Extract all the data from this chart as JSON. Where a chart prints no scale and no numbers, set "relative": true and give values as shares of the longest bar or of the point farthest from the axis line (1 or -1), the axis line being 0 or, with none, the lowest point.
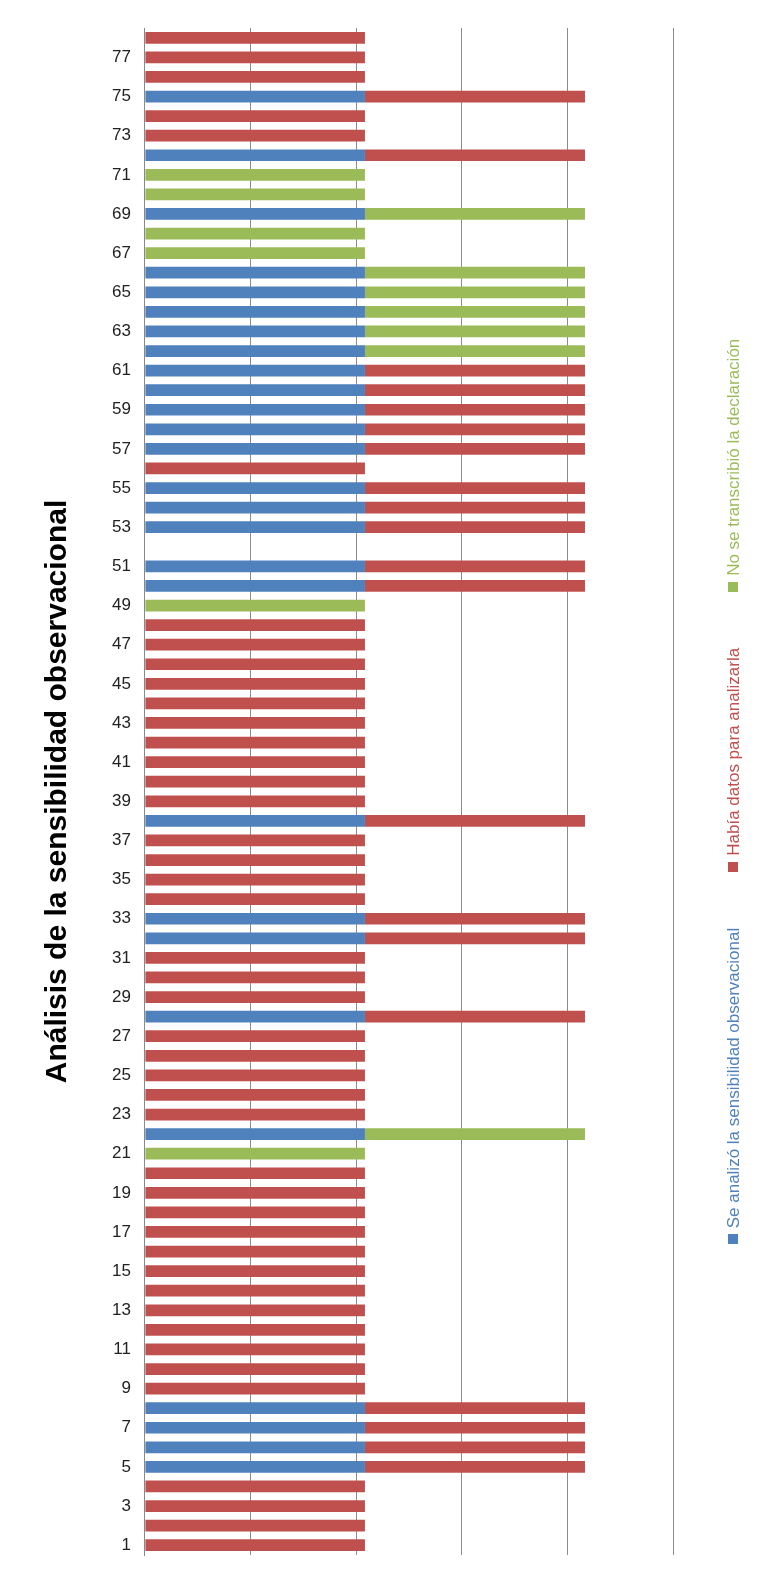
{
  "chart_data": {
    "type": "bar",
    "orientation": "horizontal",
    "title": "Análisis de la sensibilidad observacional",
    "relative": true,
    "stacked": true,
    "grid": "x",
    "legend": "right",
    "categories": [
      null,
      "77",
      null,
      "75",
      null,
      "73",
      null,
      "71",
      null,
      "69",
      null,
      "67",
      null,
      "65",
      null,
      "63",
      null,
      "61",
      null,
      "59",
      null,
      "57",
      null,
      "55",
      null,
      "53",
      null,
      "51",
      null,
      "49",
      null,
      "47",
      null,
      "45",
      null,
      "43",
      null,
      "41",
      null,
      "39",
      null,
      "37",
      null,
      "35",
      null,
      "33",
      null,
      "31",
      null,
      "29",
      null,
      "27",
      null,
      "25",
      null,
      "23",
      null,
      "21",
      null,
      "19",
      null,
      "17",
      null,
      "15",
      null,
      "13",
      null,
      "11",
      null,
      "9",
      null,
      "7",
      null,
      "5",
      null,
      "3",
      null,
      "1"
    ],
    "series": [
      {
        "name": "Se analizó la sensibilidad observacional",
        "color": "#4f81bd",
        "values": [
          0,
          0,
          0,
          0.5,
          0,
          0,
          0.5,
          0,
          0,
          0.5,
          0,
          0,
          0.5,
          0.5,
          0.5,
          0.5,
          0.5,
          0.5,
          0.5,
          0.5,
          0.5,
          0.5,
          0,
          0.5,
          0.5,
          0.5,
          0,
          0.5,
          0.5,
          0,
          0,
          0,
          0,
          0,
          0,
          0,
          0,
          0,
          0,
          0,
          0.5,
          0,
          0,
          0,
          0,
          0.5,
          0.5,
          0,
          0,
          0,
          0.5,
          0,
          0,
          0,
          0,
          0,
          0.5,
          0,
          0,
          0,
          0,
          0,
          0,
          0,
          0,
          0,
          0,
          0,
          0,
          0,
          0.5,
          0.5,
          0.5,
          0.5,
          0,
          0,
          0,
          0
        ]
      },
      {
        "name": "Había datos para analizarla",
        "color": "#c0504d",
        "values": [
          0.5,
          0.5,
          0.5,
          0.5,
          0.5,
          0.5,
          0.5,
          0,
          0,
          0,
          0,
          0,
          0,
          0,
          0,
          0,
          0,
          0.5,
          0.5,
          0.5,
          0.5,
          0.5,
          0.5,
          0.5,
          0.5,
          0.5,
          0,
          0.5,
          0.5,
          0,
          0.5,
          0.5,
          0.5,
          0.5,
          0.5,
          0.5,
          0.5,
          0.5,
          0.5,
          0.5,
          0.5,
          0.5,
          0.5,
          0.5,
          0.5,
          0.5,
          0.5,
          0.5,
          0.5,
          0.5,
          0.5,
          0.5,
          0.5,
          0.5,
          0.5,
          0.5,
          0,
          0,
          0.5,
          0.5,
          0.5,
          0.5,
          0.5,
          0.5,
          0.5,
          0.5,
          0.5,
          0.5,
          0.5,
          0.5,
          0.5,
          0.5,
          0.5,
          0.5,
          0.5,
          0.5,
          0.5,
          0.5
        ]
      },
      {
        "name": "No se transcribió la declaración",
        "color": "#9bbb59",
        "values": [
          0,
          0,
          0,
          0,
          0,
          0,
          0,
          0.5,
          0.5,
          0.5,
          0.5,
          0.5,
          0.5,
          0.5,
          0.5,
          0.5,
          0.5,
          0,
          0,
          0,
          0,
          0,
          0,
          0,
          0,
          0,
          0,
          0,
          0,
          0.5,
          0,
          0,
          0,
          0,
          0,
          0,
          0,
          0,
          0,
          0,
          0,
          0,
          0,
          0,
          0,
          0,
          0,
          0,
          0,
          0,
          0,
          0,
          0,
          0,
          0,
          0,
          0.5,
          0.5,
          0,
          0,
          0,
          0,
          0,
          0,
          0,
          0,
          0,
          0,
          0,
          0,
          0,
          0,
          0,
          0,
          0,
          0,
          0,
          0
        ]
      }
    ]
  }
}
